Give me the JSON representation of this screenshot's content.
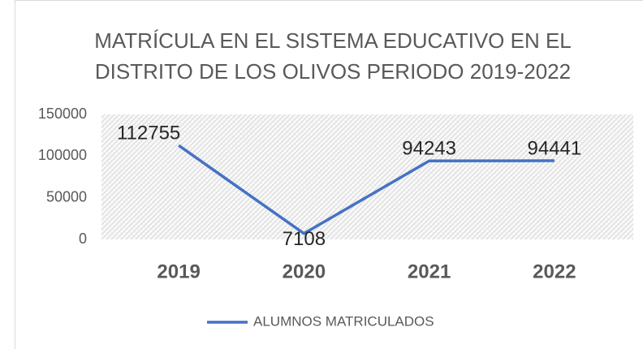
{
  "chart_data": {
    "type": "line",
    "title": [
      "MATRÍCULA EN EL SISTEMA EDUCATIVO EN EL",
      "DISTRITO DE LOS OLIVOS PERIODO 2019-2022"
    ],
    "categories": [
      "2019",
      "2020",
      "2021",
      "2022"
    ],
    "series": [
      {
        "name": "ALUMNOS MATRICULADOS",
        "color": "#4472c4",
        "values": [
          112755,
          7108,
          94243,
          94441
        ]
      }
    ],
    "ylim": [
      0,
      150000
    ],
    "yticks": [
      0,
      50000,
      100000,
      150000
    ],
    "legend": "bottom"
  }
}
